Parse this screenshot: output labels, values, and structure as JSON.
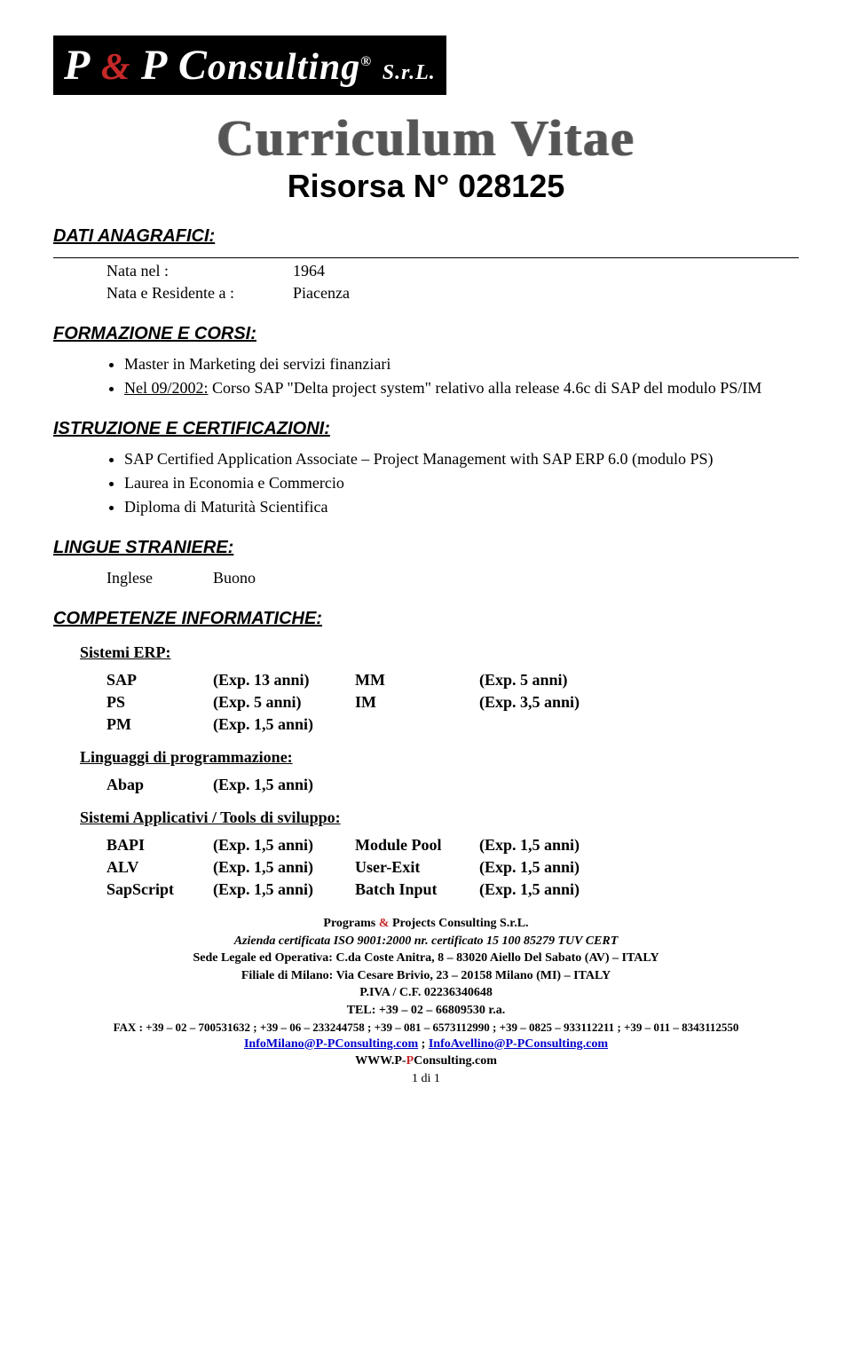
{
  "logo": {
    "text_prefix": "P",
    "amp": "&",
    "text_mid": "P C",
    "text_suffix": "onsulting",
    "reg": "®",
    "srl": "S.r.L."
  },
  "header": {
    "cv_title": "Curriculum Vitae",
    "risorsa_label": "Risorsa N°",
    "risorsa_num": "028125"
  },
  "sections": {
    "dati": {
      "title": "DATI ANAGRAFICI:",
      "rows": [
        {
          "label": "Nata nel :",
          "value": "1964"
        },
        {
          "label": "Nata e Residente a :",
          "value": "Piacenza"
        }
      ]
    },
    "formazione": {
      "title": "FORMAZIONE E CORSI:",
      "items": [
        "Master in Marketing dei servizi finanziari",
        "Nel 09/2002: Corso SAP \"Delta project system\" relativo alla release 4.6c di SAP del modulo PS/IM"
      ],
      "underline_second_prefix": "Nel 09/2002:"
    },
    "istruzione": {
      "title": "ISTRUZIONE E CERTIFICAZIONI:",
      "items": [
        "SAP Certified Application Associate – Project Management with SAP ERP 6.0 (modulo PS)",
        "Laurea in Economia e Commercio",
        "Diploma di Maturità Scientifica"
      ]
    },
    "lingue": {
      "title": "LINGUE STRANIERE:",
      "rows": [
        {
          "label": "Inglese",
          "value": "Buono"
        }
      ]
    },
    "competenze": {
      "title": "COMPETENZE INFORMATICHE:",
      "erp": {
        "subtitle": "Sistemi ERP:",
        "rows": [
          {
            "c1": "SAP",
            "c2": "(Exp. 13 anni)",
            "c3": "MM",
            "c4": "(Exp.   5 anni)"
          },
          {
            "c1": "PS",
            "c2": "(Exp.   5 anni)",
            "c3": "IM",
            "c4": "(Exp. 3,5 anni)"
          },
          {
            "c1": "PM",
            "c2": "(Exp. 1,5 anni)",
            "c3": "",
            "c4": ""
          }
        ]
      },
      "lang": {
        "subtitle": "Linguaggi di programmazione:",
        "rows": [
          {
            "c1": "Abap",
            "c2": "(Exp. 1,5 anni)"
          }
        ]
      },
      "tools": {
        "subtitle": "Sistemi Applicativi / Tools di sviluppo:",
        "rows": [
          {
            "c1": "BAPI",
            "c2": "(Exp. 1,5 anni)",
            "c3": "Module Pool",
            "c4": "(Exp. 1,5 anni)"
          },
          {
            "c1": "ALV",
            "c2": "(Exp. 1,5 anni)",
            "c3": "User-Exit",
            "c4": "(Exp. 1,5 anni)"
          },
          {
            "c1": "SapScript",
            "c2": "(Exp. 1,5 anni)",
            "c3": "Batch Input",
            "c4": "(Exp. 1,5 anni)"
          }
        ]
      }
    }
  },
  "footer": {
    "company": "Programs & Projects Consulting S.r.L.",
    "iso": "Azienda certificata ISO 9001:2000 nr. certificato 15 100 85279 TUV CERT",
    "sede": "Sede Legale ed Operativa:  C.da Coste Anitra, 8  –  83020  Aiello Del Sabato (AV) – ITALY",
    "filiale": "Filiale di Milano: Via Cesare Brivio, 23 – 20158 Milano (MI) – ITALY",
    "piva": "P.IVA / C.F. 02236340648",
    "tel": "TEL: +39 – 02 – 66809530 r.a.",
    "fax": "FAX : +39 – 02 – 700531632 ;  +39 – 06 – 233244758 ; +39 – 081 – 6573112990 ;  +39 – 0825 – 933112211 ;  +39 – 011 – 8343112550",
    "email1": "InfoMilano@P-PConsulting.com",
    "email_sep": "   ;   ",
    "email2": "InfoAvellino@P-PConsulting.com",
    "www": "WWW.P-PConsulting.com",
    "page": "1 di 1"
  }
}
